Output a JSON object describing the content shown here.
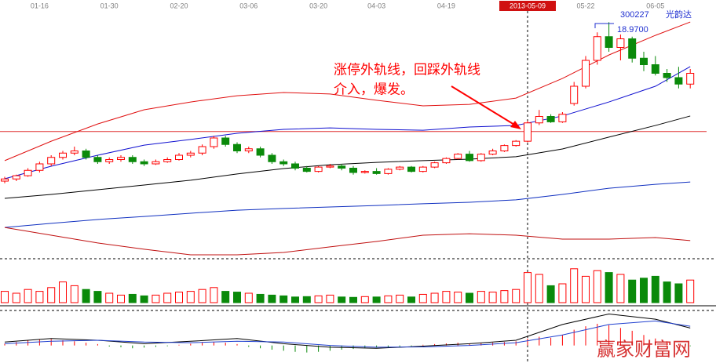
{
  "chart_data": {
    "type": "candlestick",
    "stock_code": "300227",
    "stock_name": "光韵达",
    "peak_label": "18.9700",
    "annotation": [
      "涨停外轨线，回踩外轨线",
      "介入，爆发。"
    ],
    "watermark": "赢家财富网",
    "up_color": "#ff0000",
    "down_color": "#0a8a0a",
    "categories": [
      null,
      null,
      null,
      "01-16",
      null,
      null,
      null,
      null,
      null,
      "01-30",
      null,
      null,
      null,
      null,
      null,
      "02-20",
      null,
      null,
      null,
      null,
      null,
      "03-06",
      null,
      null,
      null,
      null,
      null,
      "03-20",
      null,
      null,
      null,
      null,
      "04-03",
      null,
      null,
      null,
      null,
      null,
      "04-19",
      null,
      null,
      null,
      null,
      null,
      null,
      "2013-05-09",
      null,
      null,
      null,
      null,
      "05-22",
      null,
      null,
      null,
      null,
      null,
      "06-05",
      null,
      null,
      null
    ],
    "candles": [
      [
        11.6,
        11.8,
        11.5,
        11.7
      ],
      [
        11.7,
        11.9,
        11.6,
        11.85
      ],
      [
        11.85,
        12.2,
        11.8,
        12.1
      ],
      [
        12.1,
        12.5,
        12.0,
        12.4
      ],
      [
        12.4,
        12.8,
        12.3,
        12.7
      ],
      [
        12.7,
        13.0,
        12.6,
        12.9
      ],
      [
        12.9,
        13.2,
        12.8,
        13.0
      ],
      [
        13.0,
        13.1,
        12.6,
        12.7
      ],
      [
        12.7,
        12.8,
        12.4,
        12.5
      ],
      [
        12.5,
        12.7,
        12.4,
        12.6
      ],
      [
        12.6,
        12.8,
        12.5,
        12.7
      ],
      [
        12.7,
        12.8,
        12.4,
        12.5
      ],
      [
        12.5,
        12.6,
        12.3,
        12.4
      ],
      [
        12.4,
        12.6,
        12.35,
        12.5
      ],
      [
        12.5,
        12.7,
        12.45,
        12.6
      ],
      [
        12.6,
        12.9,
        12.55,
        12.8
      ],
      [
        12.8,
        13.0,
        12.7,
        12.9
      ],
      [
        12.9,
        13.3,
        12.8,
        13.2
      ],
      [
        13.2,
        13.7,
        13.1,
        13.6
      ],
      [
        13.6,
        13.7,
        13.2,
        13.3
      ],
      [
        13.3,
        13.4,
        12.9,
        13.0
      ],
      [
        13.0,
        13.2,
        12.9,
        13.1
      ],
      [
        13.1,
        13.2,
        12.7,
        12.8
      ],
      [
        12.8,
        12.9,
        12.4,
        12.5
      ],
      [
        12.5,
        12.6,
        12.3,
        12.4
      ],
      [
        12.4,
        12.5,
        12.1,
        12.2
      ],
      [
        12.2,
        12.3,
        12.0,
        12.05
      ],
      [
        12.05,
        12.3,
        12.0,
        12.25
      ],
      [
        12.25,
        12.4,
        12.2,
        12.3
      ],
      [
        12.3,
        12.4,
        12.1,
        12.2
      ],
      [
        12.2,
        12.3,
        11.9,
        12.0
      ],
      [
        12.0,
        12.1,
        11.95,
        12.05
      ],
      [
        12.05,
        12.2,
        11.9,
        11.95
      ],
      [
        11.95,
        12.2,
        11.9,
        12.15
      ],
      [
        12.15,
        12.3,
        12.1,
        12.25
      ],
      [
        12.25,
        12.3,
        12.0,
        12.05
      ],
      [
        12.05,
        12.3,
        12.0,
        12.25
      ],
      [
        12.25,
        12.5,
        12.2,
        12.45
      ],
      [
        12.45,
        12.7,
        12.4,
        12.65
      ],
      [
        12.65,
        12.9,
        12.6,
        12.85
      ],
      [
        12.85,
        13.0,
        12.5,
        12.55
      ],
      [
        12.55,
        12.9,
        12.5,
        12.85
      ],
      [
        12.85,
        13.1,
        12.8,
        13.0
      ],
      [
        13.0,
        13.3,
        12.95,
        13.25
      ],
      [
        13.25,
        13.5,
        13.2,
        13.45
      ],
      [
        13.45,
        14.4,
        13.4,
        14.3
      ],
      [
        14.3,
        14.9,
        14.2,
        14.6
      ],
      [
        14.6,
        14.7,
        14.3,
        14.35
      ],
      [
        14.35,
        14.8,
        14.3,
        14.7
      ],
      [
        15.2,
        16.2,
        15.1,
        16.0
      ],
      [
        16.0,
        17.4,
        15.9,
        17.2
      ],
      [
        17.2,
        18.5,
        17.0,
        18.3
      ],
      [
        18.3,
        18.97,
        17.6,
        17.8
      ],
      [
        17.8,
        18.4,
        17.2,
        18.2
      ],
      [
        18.2,
        18.3,
        17.1,
        17.3
      ],
      [
        17.3,
        17.6,
        16.7,
        17.0
      ],
      [
        17.0,
        17.4,
        16.5,
        16.6
      ],
      [
        16.6,
        16.8,
        16.2,
        16.4
      ],
      [
        16.4,
        16.9,
        15.9,
        16.1
      ],
      [
        16.1,
        16.8,
        15.9,
        16.6
      ]
    ],
    "ylim": [
      8,
      20
    ],
    "reference_line": {
      "value": 13.9,
      "color": "#e03030"
    },
    "line_x": [
      0,
      4,
      8,
      12,
      16,
      20,
      24,
      28,
      32,
      36,
      40,
      44,
      48,
      52,
      56,
      59
    ],
    "lines": [
      {
        "color": "#e01010",
        "values": [
          12.55,
          13.45,
          14.25,
          14.91,
          15.27,
          15.56,
          15.71,
          15.64,
          15.35,
          15.09,
          15.16,
          15.45,
          16.36,
          17.45,
          18.36,
          18.98
        ]
      },
      {
        "color": "#1010d0",
        "values": [
          11.71,
          12.29,
          12.8,
          13.27,
          13.53,
          13.82,
          14,
          14.07,
          14,
          13.96,
          14.11,
          14.18,
          14.62,
          15.27,
          16,
          16.91
        ]
      },
      {
        "color": "#000000",
        "values": [
          10.8,
          10.98,
          11.2,
          11.42,
          11.64,
          11.93,
          12.18,
          12.36,
          12.47,
          12.55,
          12.62,
          12.73,
          13.09,
          13.64,
          14.18,
          14.62
        ]
      },
      {
        "color": "#1030c0",
        "values": [
          9.45,
          9.64,
          9.82,
          9.96,
          10.11,
          10.25,
          10.33,
          10.4,
          10.47,
          10.55,
          10.62,
          10.73,
          10.98,
          11.27,
          11.45,
          11.56
        ]
      },
      {
        "color": "#c01010",
        "values": [
          9.45,
          9.09,
          8.73,
          8.44,
          8.18,
          8.18,
          8.29,
          8.55,
          8.8,
          9.09,
          9.16,
          9.09,
          8.91,
          8.91,
          8.98,
          8.84
        ]
      }
    ],
    "volume": {
      "ylim": [
        0,
        100
      ],
      "values": [
        30,
        25,
        35,
        30,
        40,
        55,
        45,
        35,
        30,
        25,
        20,
        22,
        18,
        20,
        25,
        28,
        30,
        35,
        40,
        30,
        28,
        25,
        22,
        20,
        18,
        15,
        16,
        18,
        20,
        15,
        14,
        16,
        15,
        18,
        20,
        15,
        22,
        25,
        30,
        28,
        25,
        30,
        28,
        32,
        35,
        80,
        75,
        45,
        50,
        90,
        70,
        85,
        80,
        75,
        60,
        65,
        70,
        55,
        50,
        60
      ]
    },
    "macd": {
      "ylim": [
        -0.5,
        1.0
      ],
      "hist": [
        0.05,
        0.1,
        0.15,
        0.18,
        0.18,
        0.15,
        0.12,
        0.08,
        0.04,
        -0.03,
        -0.05,
        -0.08,
        -0.06,
        -0.04,
        -0.02,
        0.02,
        0.05,
        0.08,
        0.1,
        0.08,
        0.04,
        -0.04,
        -0.08,
        -0.12,
        -0.15,
        -0.18,
        -0.2,
        -0.18,
        -0.15,
        -0.12,
        -0.1,
        -0.08,
        -0.06,
        -0.05,
        -0.03,
        -0.02,
        0.02,
        0.04,
        0.06,
        0.08,
        0.05,
        0.06,
        0.08,
        0.1,
        0.12,
        0.2,
        0.25,
        0.22,
        0.3,
        0.45,
        0.55,
        0.62,
        0.58,
        0.5,
        0.42,
        0.3,
        0.2,
        0.12,
        0.05,
        -0.02
      ],
      "dif": {
        "color": "#000000",
        "values": [
          0.1,
          0.2,
          0.15,
          0.05,
          0.12,
          0.2,
          0.05,
          -0.05,
          -0.08,
          -0.02,
          0.05,
          0.15,
          0.6,
          0.9,
          0.75,
          0.5
        ]
      },
      "dea": {
        "color": "#2040d0",
        "values": [
          0.05,
          0.12,
          0.15,
          0.1,
          0.08,
          0.12,
          0.1,
          0.0,
          -0.05,
          -0.04,
          0.0,
          0.08,
          0.3,
          0.6,
          0.7,
          0.55
        ]
      }
    }
  }
}
